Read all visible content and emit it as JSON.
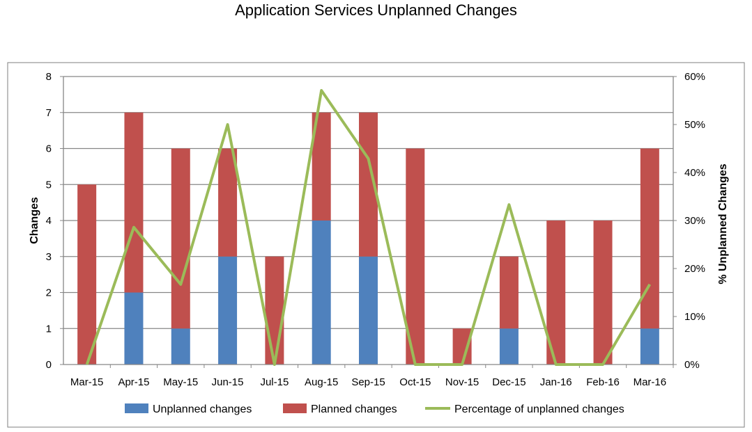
{
  "chart_data": {
    "type": "bar",
    "title": "Application Services Unplanned Changes",
    "categories": [
      "Mar-15",
      "Apr-15",
      "May-15",
      "Jun-15",
      "Jul-15",
      "Aug-15",
      "Sep-15",
      "Oct-15",
      "Nov-15",
      "Dec-15",
      "Jan-16",
      "Feb-16",
      "Mar-16"
    ],
    "series": [
      {
        "name": "Unplanned changes",
        "type": "bar",
        "stacked": true,
        "axis": "left",
        "color": "#4F81BD",
        "values": [
          0,
          2,
          1,
          3,
          0,
          4,
          3,
          0,
          0,
          1,
          0,
          0,
          1
        ]
      },
      {
        "name": "Planned changes",
        "type": "bar",
        "stacked": true,
        "axis": "left",
        "color": "#C0504D",
        "values": [
          5,
          5,
          5,
          3,
          3,
          3,
          4,
          6,
          1,
          2,
          4,
          4,
          5
        ]
      },
      {
        "name": "Percentage of unplanned changes",
        "type": "line",
        "axis": "right",
        "color": "#9BBB59",
        "values": [
          0,
          28.6,
          16.7,
          50,
          0,
          57.1,
          42.9,
          0,
          0,
          33.3,
          0,
          0,
          16.7
        ]
      }
    ],
    "ylabel": "Changes",
    "ylim": [
      0,
      8
    ],
    "yticks": [
      "0",
      "1",
      "2",
      "3",
      "4",
      "5",
      "6",
      "7",
      "8"
    ],
    "y2label": "% Unplanned Changes",
    "y2lim": [
      0,
      60
    ],
    "y2ticks": [
      "0%",
      "10%",
      "20%",
      "30%",
      "40%",
      "50%",
      "60%"
    ],
    "grid": true,
    "legend_position": "bottom"
  }
}
